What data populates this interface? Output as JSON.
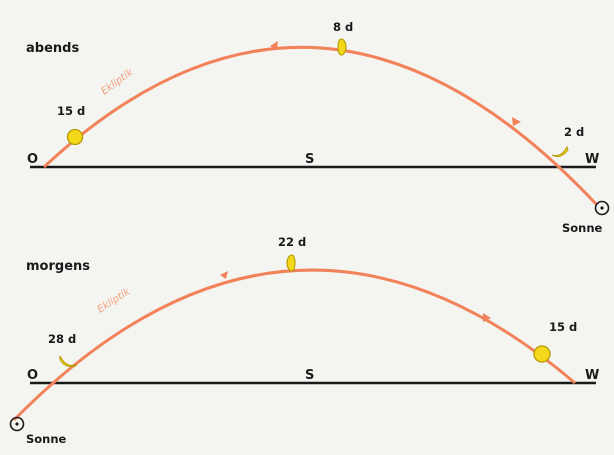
{
  "colors": {
    "arc": "#f2825a",
    "horizon": "#1a1a1a",
    "moon_fill": "#f3d91a",
    "moon_stroke": "#b59a00",
    "background": "#f4f4f1"
  },
  "evening": {
    "section_label": "abends",
    "east_label": "O",
    "south_label": "S",
    "west_label": "W",
    "arc_label": "Ekliptik",
    "sun_label": "Sonne",
    "phases": [
      {
        "label": "15 d",
        "shape": "full"
      },
      {
        "label": "8 d",
        "shape": "half"
      },
      {
        "label": "2 d",
        "shape": "crescent"
      }
    ]
  },
  "morning": {
    "section_label": "morgens",
    "east_label": "O",
    "south_label": "S",
    "west_label": "W",
    "arc_label": "Ekliptik",
    "sun_label": "Sonne",
    "phases": [
      {
        "label": "28 d",
        "shape": "crescent"
      },
      {
        "label": "22 d",
        "shape": "half"
      },
      {
        "label": "15 d",
        "shape": "full"
      }
    ]
  }
}
